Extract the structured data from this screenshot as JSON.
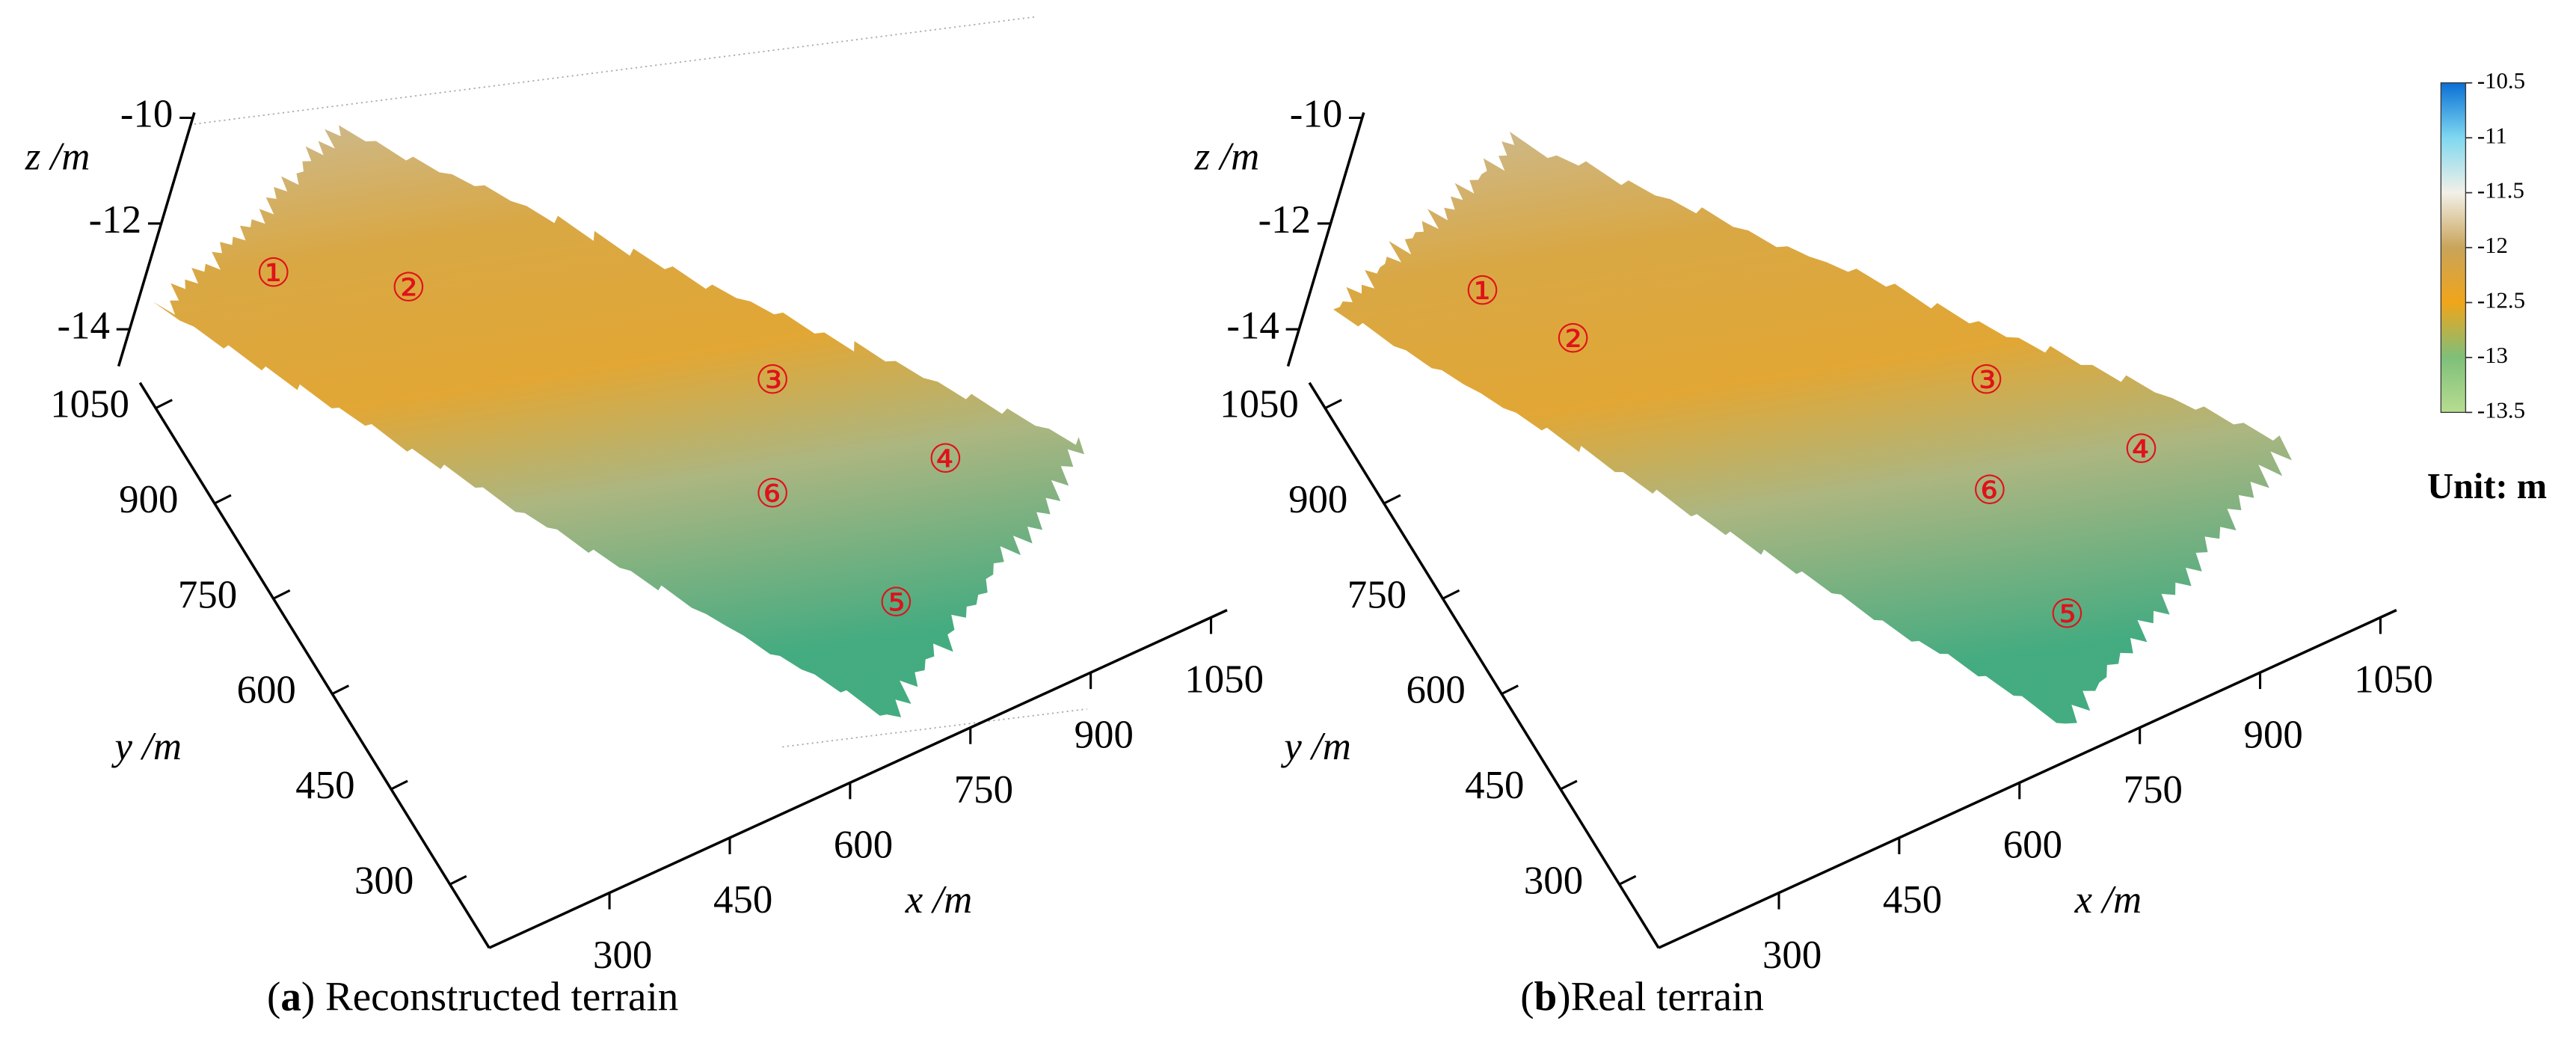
{
  "chart_data": [
    {
      "type": "surface3d",
      "xlabel": "x /m",
      "ylabel": "y /m",
      "zlabel": "z /m",
      "xlim": [
        150,
        1070
      ],
      "xticks": [
        300,
        450,
        600,
        750,
        900,
        1050
      ],
      "ylim": [
        200,
        1090
      ],
      "yticks": [
        1050,
        900,
        750,
        600,
        450,
        300
      ],
      "zlim": [
        -14.7,
        -9.9
      ],
      "zticks": [
        -10,
        -12,
        -14
      ],
      "annotations": [
        "①",
        "②",
        "③",
        "④",
        "⑤",
        "⑥"
      ],
      "caption": [
        "(",
        "a",
        ") Reconstructed terrain"
      ]
    },
    {
      "type": "surface3d",
      "xlabel": "x /m",
      "ylabel": "y /m",
      "zlabel": "z /m",
      "xlim": [
        150,
        1070
      ],
      "xticks": [
        300,
        450,
        600,
        750,
        900,
        1050
      ],
      "ylim": [
        200,
        1090
      ],
      "yticks": [
        1050,
        900,
        750,
        600,
        450,
        300
      ],
      "zlim": [
        -14.7,
        -9.9
      ],
      "zticks": [
        -10,
        -12,
        -14
      ],
      "annotations": [
        "①",
        "②",
        "③",
        "④",
        "⑤",
        "⑥"
      ],
      "caption": [
        "(",
        "b",
        ")Real terrain"
      ]
    }
  ],
  "colorbar": {
    "ylim": [
      -13.5,
      -10.5
    ],
    "yticks": [
      -10.5,
      -11,
      -11.5,
      -12,
      -12.5,
      -13,
      -13.5
    ],
    "colors": [
      "#0a6fd6",
      "#7fd8f0",
      "#f2f0e8",
      "#c9a45a",
      "#f0a51a",
      "#7fbf7a",
      "#b7dd90"
    ],
    "label": "Unit: m"
  }
}
